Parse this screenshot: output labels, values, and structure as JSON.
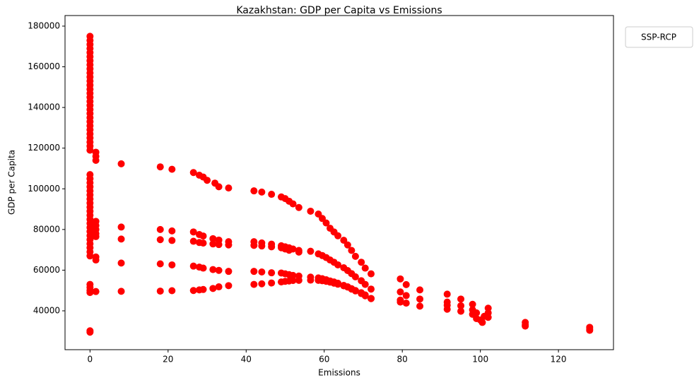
{
  "chart_data": {
    "type": "scatter",
    "title": "Kazakhstan: GDP per Capita vs Emissions",
    "x_label": "Emissions",
    "y_label": "GDP per Capita",
    "legend_title": "SSP-RCP",
    "x": [
      0,
      0,
      0,
      0,
      0,
      0,
      0,
      0,
      0,
      0,
      0,
      0,
      0,
      0,
      0,
      0,
      0,
      0,
      0,
      0,
      0,
      0,
      0,
      0,
      0,
      0,
      0,
      0,
      0,
      0,
      0,
      0,
      0,
      0,
      0,
      0,
      0,
      0,
      0,
      0,
      0,
      0,
      0,
      0,
      0,
      0,
      0,
      0,
      0,
      0,
      0,
      0,
      0,
      0,
      0,
      0,
      1.5,
      1.5,
      1.5,
      1.5,
      1.5,
      1.5,
      1.5,
      1.5,
      1.5,
      1.5,
      1.5,
      8,
      18,
      21,
      26.5,
      28,
      29,
      30,
      32,
      33,
      35.5,
      42,
      44,
      46.5,
      49,
      50,
      51,
      52,
      53.5,
      56.5,
      58.5,
      59.5,
      60.5,
      61.5,
      62.5,
      63.5,
      65,
      66,
      67,
      68,
      69.5,
      70.5,
      72,
      8,
      18,
      21,
      26.5,
      28,
      29,
      31.5,
      33,
      35.5,
      42,
      44,
      46.5,
      49,
      50,
      51,
      52,
      53.5,
      56.5,
      58.5,
      59.5,
      60.5,
      61.5,
      62.5,
      63.5,
      65,
      66,
      67,
      68,
      69.5,
      70.5,
      72,
      8,
      18,
      21,
      26.5,
      28,
      29,
      31.5,
      33,
      35.5,
      42,
      44,
      46.5,
      49,
      50,
      51,
      52,
      53.5,
      56.5,
      58.5,
      59.5,
      60.5,
      61.5,
      62.5,
      63.5,
      65,
      66,
      67,
      68,
      69.5,
      70.5,
      72,
      8,
      18,
      21,
      26.5,
      28,
      29,
      31.5,
      33,
      35.5,
      42,
      44,
      46.5,
      49,
      50,
      51,
      52,
      53.5,
      56.5,
      58.5,
      59.5,
      60.5,
      61.5,
      62.5,
      63.5,
      65,
      66,
      67,
      68,
      69.5,
      70.5,
      72,
      8,
      18,
      21,
      26.5,
      28,
      29,
      31.5,
      33,
      35.5,
      42,
      44,
      46.5,
      49,
      50,
      51,
      53.5,
      79.5,
      79.5,
      79.5,
      79.5,
      81,
      81,
      81,
      84.5,
      84.5,
      84.5,
      91.5,
      91.5,
      91.5,
      91.5,
      95,
      95,
      95,
      98,
      98,
      98,
      99,
      99,
      100,
      100.5,
      101,
      102,
      102,
      102,
      111.5,
      111.5,
      111.5,
      128,
      128,
      128
    ],
    "series": [
      {
        "color": "#ff0000",
        "values": [
          175000,
          173000,
          171000,
          169000,
          167000,
          165000,
          163000,
          161000,
          159000,
          157000,
          155000,
          153000,
          151000,
          149000,
          147000,
          145000,
          143000,
          141000,
          139000,
          137000,
          135000,
          133000,
          131000,
          129000,
          127000,
          125000,
          123000,
          121000,
          119000,
          107000,
          105000,
          103000,
          101000,
          99000,
          97000,
          95000,
          93000,
          91000,
          89000,
          87000,
          85000,
          83000,
          81000,
          79000,
          77000,
          75000,
          73000,
          71000,
          69000,
          67000,
          53000,
          51500,
          50000,
          49000,
          30200,
          29500,
          118000,
          116000,
          114000,
          84000,
          82000,
          80000,
          78000,
          76500,
          66500,
          65000,
          49500,
          112300,
          110800,
          109600,
          108000,
          106700,
          105800,
          104200,
          102800,
          101000,
          100400,
          99000,
          98400,
          97300,
          96000,
          95200,
          93900,
          92600,
          90800,
          89000,
          87600,
          85400,
          83200,
          80600,
          78800,
          76900,
          74700,
          72400,
          69700,
          66800,
          63900,
          61000,
          58200,
          81200,
          80000,
          79300,
          78800,
          77500,
          76800,
          75500,
          74800,
          74000,
          74000,
          73400,
          72800,
          72000,
          71500,
          71000,
          70400,
          69700,
          69300,
          68000,
          67200,
          66200,
          65000,
          63900,
          62600,
          61200,
          59800,
          58300,
          56700,
          54800,
          53000,
          50700,
          63500,
          63100,
          62600,
          62000,
          61500,
          61000,
          60300,
          59900,
          59400,
          59400,
          59100,
          58700,
          58600,
          58200,
          57800,
          57400,
          57100,
          56600,
          56200,
          55800,
          55300,
          54700,
          54200,
          53600,
          52500,
          51800,
          50900,
          50000,
          48900,
          47800,
          46100,
          49600,
          49700,
          49900,
          50000,
          50300,
          50500,
          51000,
          51800,
          52400,
          53000,
          53300,
          53700,
          54200,
          54500,
          54700,
          54900,
          55000,
          55100,
          55000,
          54800,
          54500,
          54100,
          53600,
          53100,
          52300,
          51700,
          50700,
          49800,
          48500,
          47400,
          46000,
          75300,
          75000,
          74600,
          74200,
          73600,
          73300,
          72900,
          72600,
          72400,
          72200,
          71900,
          71500,
          71000,
          70400,
          69800,
          68900,
          55700,
          49300,
          45300,
          44300,
          52900,
          47500,
          43800,
          50300,
          45800,
          42300,
          48200,
          44300,
          42700,
          40800,
          45800,
          42500,
          39800,
          43200,
          40500,
          38300,
          39000,
          36200,
          35500,
          34300,
          37300,
          41300,
          39000,
          36800,
          34300,
          33100,
          32500,
          31900,
          31000,
          30400
        ]
      }
    ],
    "xlim": [
      -6.4,
      134.1
    ],
    "ylim": [
      20900,
      185200
    ],
    "xticks": [
      0,
      20,
      40,
      60,
      80,
      100,
      120
    ],
    "yticks": [
      40000,
      60000,
      80000,
      100000,
      120000,
      140000,
      160000,
      180000
    ],
    "grid": false
  }
}
